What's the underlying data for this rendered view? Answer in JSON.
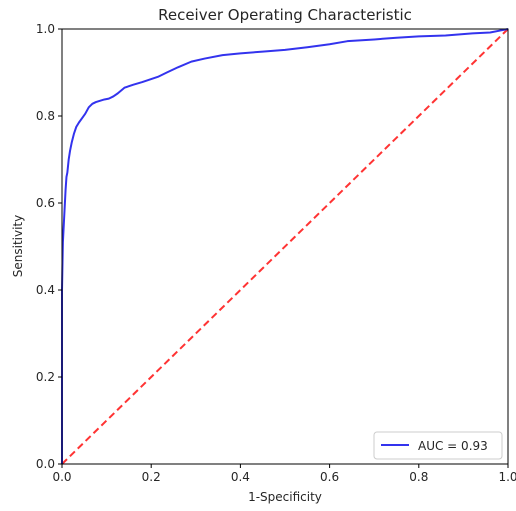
{
  "chart_data": {
    "type": "line",
    "title": "Receiver Operating Characteristic",
    "xlabel": "1-Specificity",
    "ylabel": "Sensitivity",
    "xlim": [
      0.0,
      1.0
    ],
    "ylim": [
      0.0,
      1.0
    ],
    "xticks": [
      "0.0",
      "0.2",
      "0.4",
      "0.6",
      "0.8",
      "1.0"
    ],
    "yticks": [
      "0.0",
      "0.2",
      "0.4",
      "0.6",
      "0.8",
      "1.0"
    ],
    "grid": false,
    "legend_position": "lower-right",
    "series": [
      {
        "name": "AUC = 0.93",
        "color": "#3333ee",
        "style": "solid",
        "x": [
          0.0,
          0.0,
          0.002,
          0.004,
          0.006,
          0.008,
          0.01,
          0.012,
          0.015,
          0.018,
          0.022,
          0.027,
          0.032,
          0.038,
          0.045,
          0.052,
          0.06,
          0.068,
          0.076,
          0.085,
          0.095,
          0.105,
          0.115,
          0.125,
          0.14,
          0.16,
          0.18,
          0.2,
          0.215,
          0.235,
          0.26,
          0.29,
          0.32,
          0.36,
          0.4,
          0.45,
          0.5,
          0.55,
          0.6,
          0.64,
          0.7,
          0.75,
          0.8,
          0.86,
          0.92,
          0.96,
          0.985,
          1.0
        ],
        "y": [
          0.0,
          0.4,
          0.51,
          0.55,
          0.59,
          0.63,
          0.66,
          0.67,
          0.7,
          0.72,
          0.74,
          0.76,
          0.775,
          0.785,
          0.795,
          0.805,
          0.82,
          0.828,
          0.832,
          0.835,
          0.838,
          0.84,
          0.845,
          0.852,
          0.865,
          0.872,
          0.878,
          0.885,
          0.89,
          0.9,
          0.912,
          0.925,
          0.932,
          0.94,
          0.944,
          0.948,
          0.952,
          0.958,
          0.965,
          0.972,
          0.976,
          0.98,
          0.983,
          0.985,
          0.99,
          0.992,
          0.997,
          1.0
        ]
      },
      {
        "name": "",
        "color": "#ff3333",
        "style": "dashed",
        "x": [
          0.0,
          1.0
        ],
        "y": [
          0.0,
          1.0
        ]
      }
    ]
  }
}
